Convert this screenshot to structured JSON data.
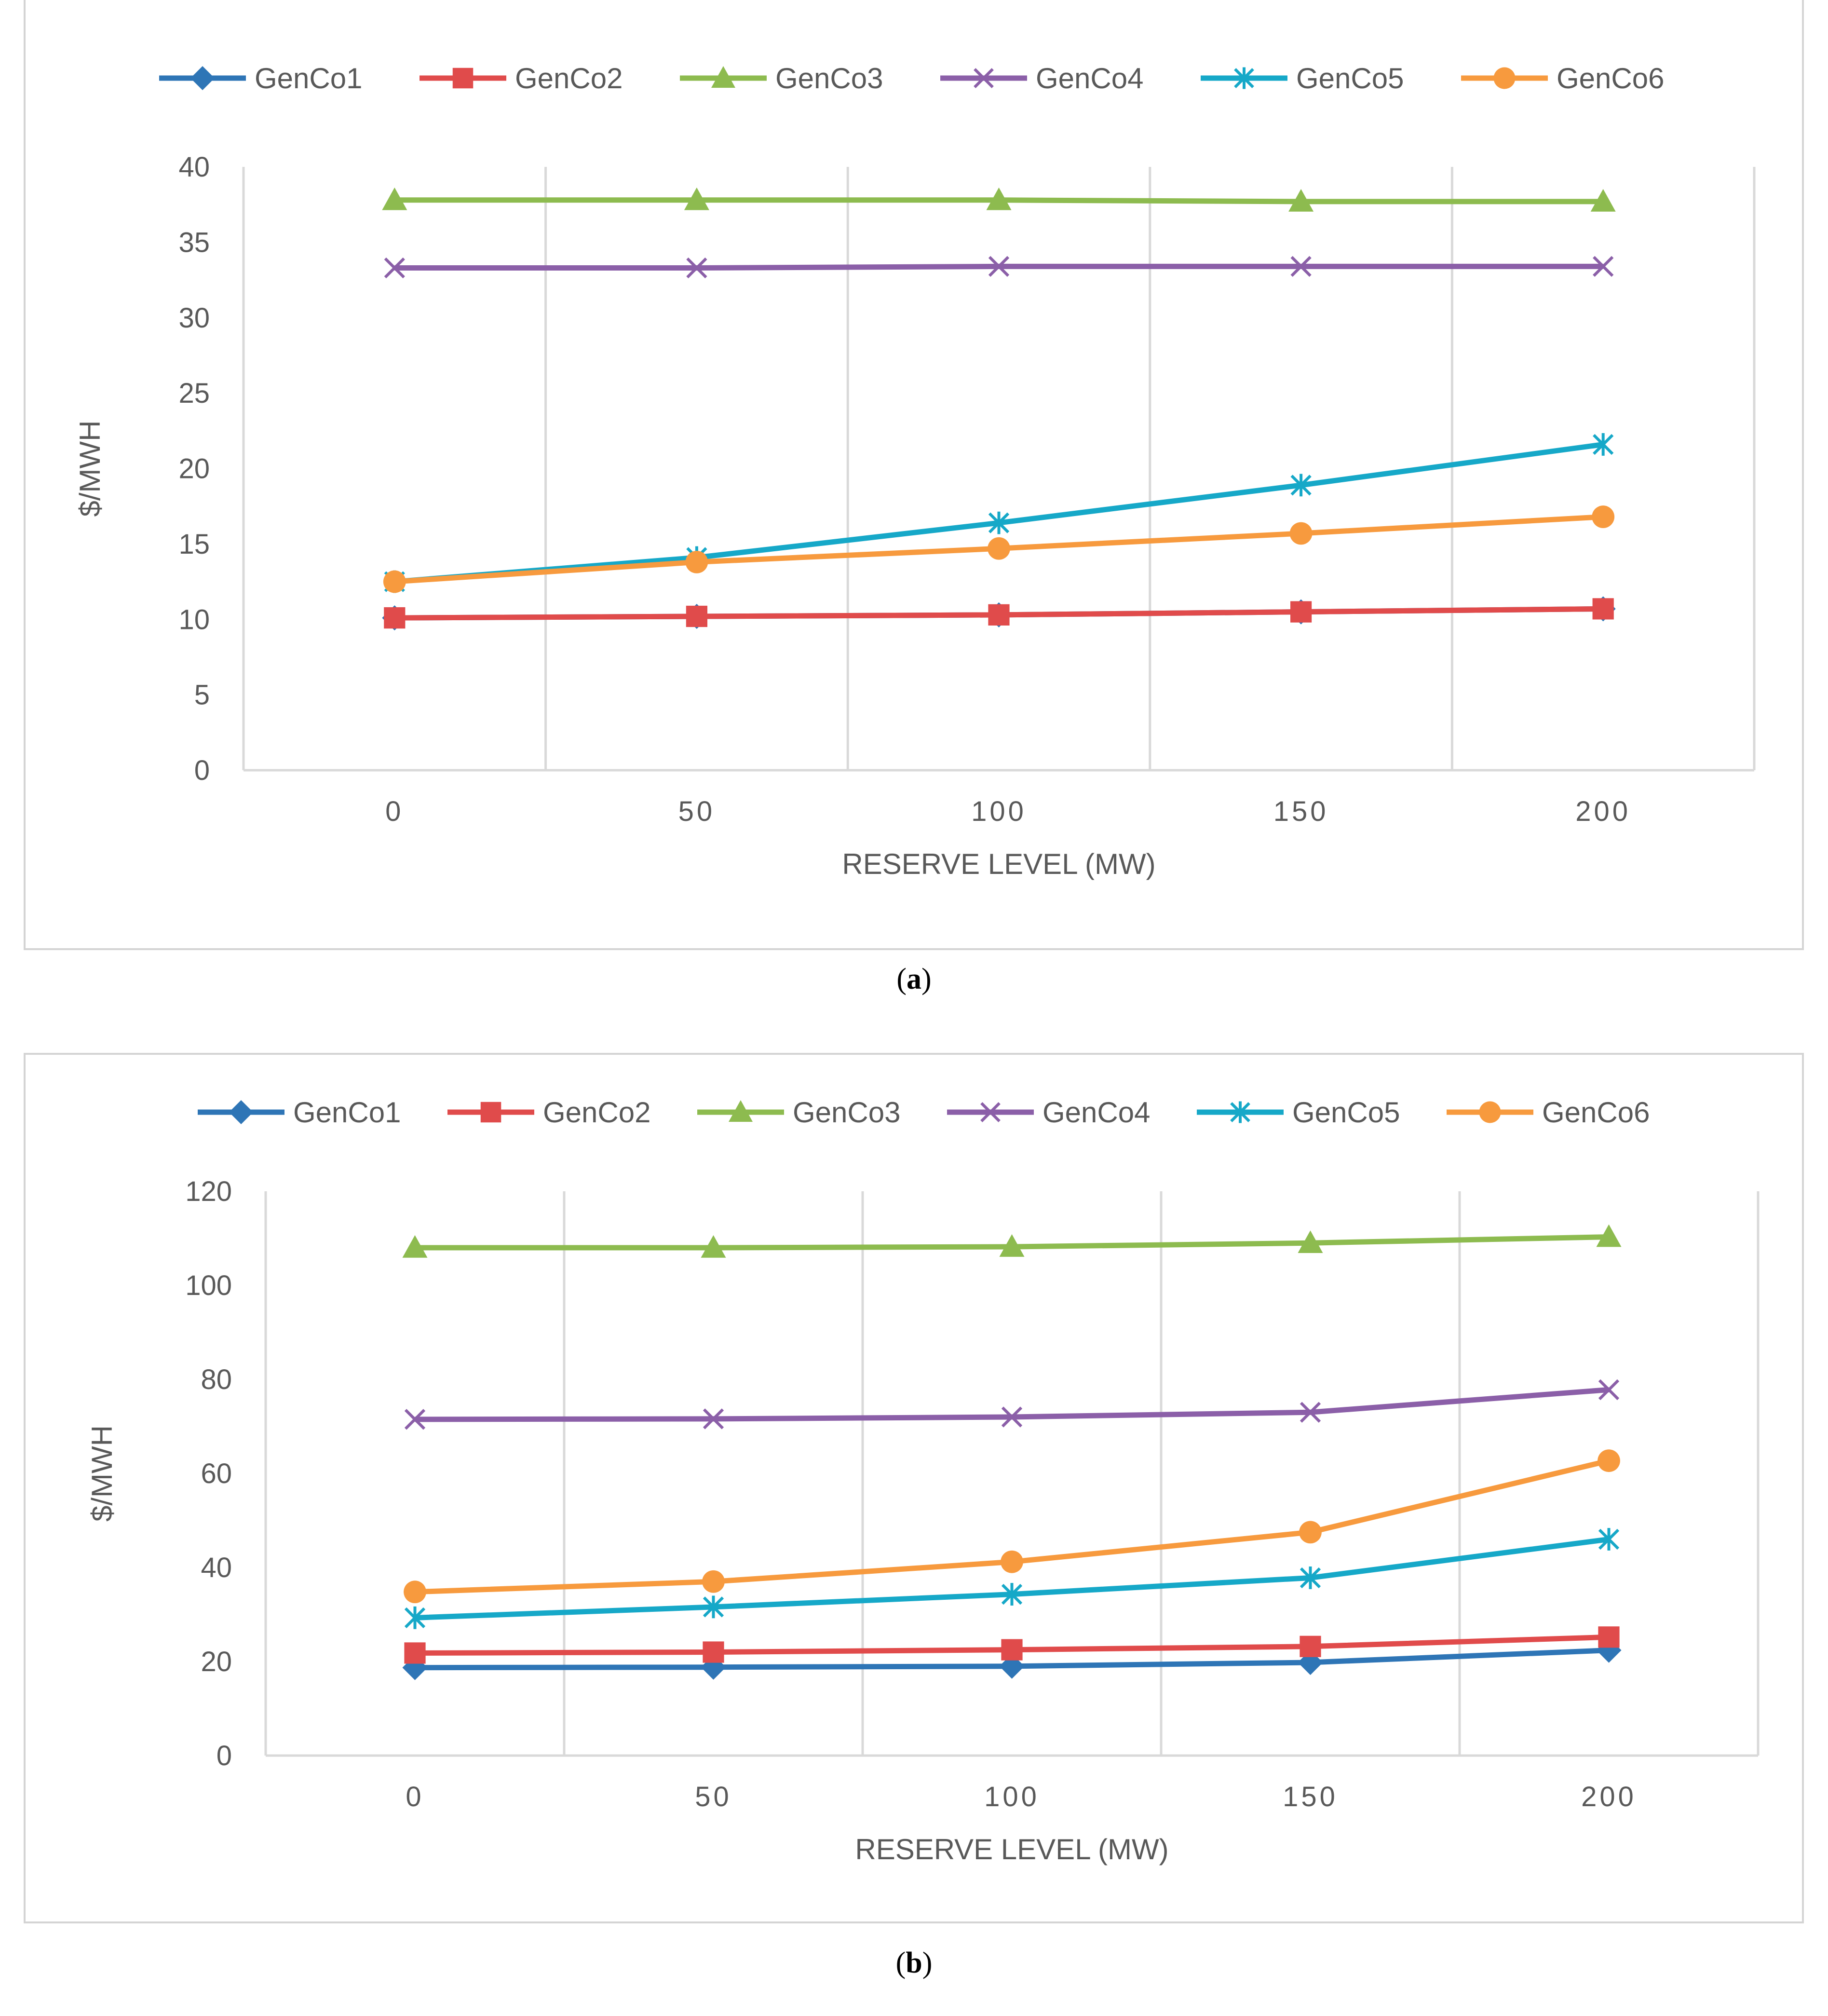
{
  "chart_data": [
    {
      "id": "a",
      "type": "line",
      "caption": "a",
      "xlabel": "RESERVE LEVEL (MW)",
      "ylabel": "$/MWH",
      "x": [
        0,
        50,
        100,
        150,
        200
      ],
      "x_tick_labels": [
        "0",
        "50",
        "100",
        "150",
        "200"
      ],
      "y_ticks": [
        0,
        5,
        10,
        15,
        20,
        25,
        30,
        35,
        40
      ],
      "ylim": [
        0,
        40
      ],
      "grid": "vertical",
      "legend": "top",
      "series": [
        {
          "name": "GenCo1",
          "color": "#2E75B6",
          "marker": "diamond",
          "values": [
            10.1,
            10.2,
            10.3,
            10.5,
            10.7
          ]
        },
        {
          "name": "GenCo2",
          "color": "#E04B4B",
          "marker": "square",
          "values": [
            10.1,
            10.2,
            10.3,
            10.5,
            10.7
          ]
        },
        {
          "name": "GenCo3",
          "color": "#8DBB4F",
          "marker": "triangle",
          "values": [
            37.8,
            37.8,
            37.8,
            37.7,
            37.7
          ]
        },
        {
          "name": "GenCo4",
          "color": "#8B5FA8",
          "marker": "x",
          "values": [
            33.3,
            33.3,
            33.4,
            33.4,
            33.4
          ]
        },
        {
          "name": "GenCo5",
          "color": "#16A8C8",
          "marker": "asterisk",
          "values": [
            12.5,
            14.1,
            16.4,
            18.9,
            21.6
          ]
        },
        {
          "name": "GenCo6",
          "color": "#F79A3E",
          "marker": "circle",
          "values": [
            12.5,
            13.8,
            14.7,
            15.7,
            16.8
          ]
        }
      ]
    },
    {
      "id": "b",
      "type": "line",
      "caption": "b",
      "xlabel": "RESERVE LEVEL (MW)",
      "ylabel": "$/MWH",
      "x": [
        0,
        50,
        100,
        150,
        200
      ],
      "x_tick_labels": [
        "0",
        "50",
        "100",
        "150",
        "200"
      ],
      "y_ticks": [
        0,
        20,
        40,
        60,
        80,
        100,
        120
      ],
      "ylim": [
        0,
        120
      ],
      "grid": "vertical",
      "legend": "top",
      "series": [
        {
          "name": "GenCo1",
          "color": "#2E75B6",
          "marker": "diamond",
          "values": [
            18.7,
            18.8,
            19.0,
            19.8,
            22.4
          ]
        },
        {
          "name": "GenCo2",
          "color": "#E04B4B",
          "marker": "square",
          "values": [
            21.8,
            22.0,
            22.5,
            23.2,
            25.2
          ]
        },
        {
          "name": "GenCo3",
          "color": "#8DBB4F",
          "marker": "triangle",
          "values": [
            108.0,
            108.0,
            108.2,
            109.0,
            110.3
          ]
        },
        {
          "name": "GenCo4",
          "color": "#8B5FA8",
          "marker": "x",
          "values": [
            71.5,
            71.6,
            72.0,
            73.0,
            77.8
          ]
        },
        {
          "name": "GenCo5",
          "color": "#16A8C8",
          "marker": "asterisk",
          "values": [
            29.3,
            31.6,
            34.3,
            37.8,
            46.0
          ]
        },
        {
          "name": "GenCo6",
          "color": "#F79A3E",
          "marker": "circle",
          "values": [
            34.8,
            37.0,
            41.2,
            47.5,
            62.7
          ]
        }
      ]
    }
  ]
}
